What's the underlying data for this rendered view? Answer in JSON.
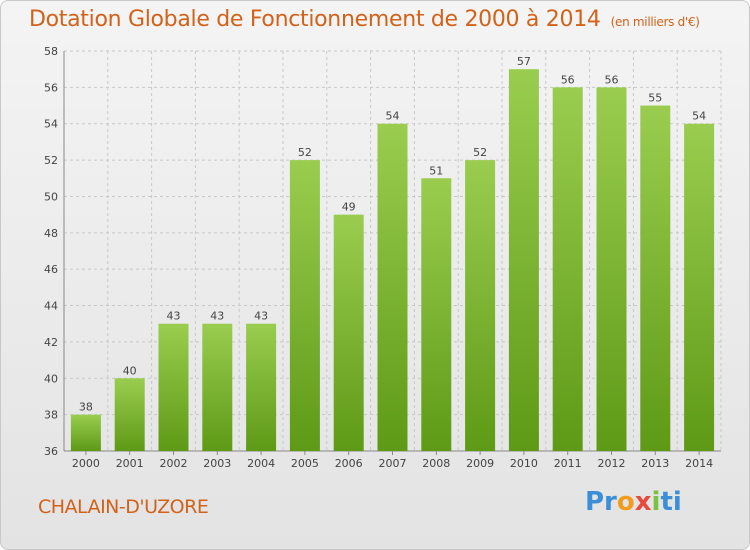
{
  "header": {
    "title": "Dotation Globale de Fonctionnement de 2000 à 2014",
    "unit": "(en milliers d'€)"
  },
  "footer": {
    "commune": "CHALAIN-D'UZORE",
    "logo_letters": [
      "Pr",
      "o",
      "x",
      "i",
      "ti"
    ]
  },
  "colors": {
    "title": "#d2621a",
    "bar_top": "#9acd4f",
    "bar_bottom": "#5e9a16",
    "grid": "#c8c8c8"
  },
  "chart_data": {
    "type": "bar",
    "title": "Dotation Globale de Fonctionnement de 2000 à 2014",
    "subtitle": "(en milliers d'€)",
    "xlabel": "",
    "ylabel": "",
    "categories": [
      "2000",
      "2001",
      "2002",
      "2003",
      "2004",
      "2005",
      "2006",
      "2007",
      "2008",
      "2009",
      "2010",
      "2011",
      "2012",
      "2013",
      "2014"
    ],
    "values": [
      38,
      40,
      43,
      43,
      43,
      52,
      49,
      54,
      51,
      52,
      57,
      56,
      56,
      55,
      54
    ],
    "ylim": [
      36,
      58
    ],
    "yticks": [
      36,
      38,
      40,
      42,
      44,
      46,
      48,
      50,
      52,
      54,
      56,
      58
    ],
    "grid": true,
    "data_labels": true
  }
}
